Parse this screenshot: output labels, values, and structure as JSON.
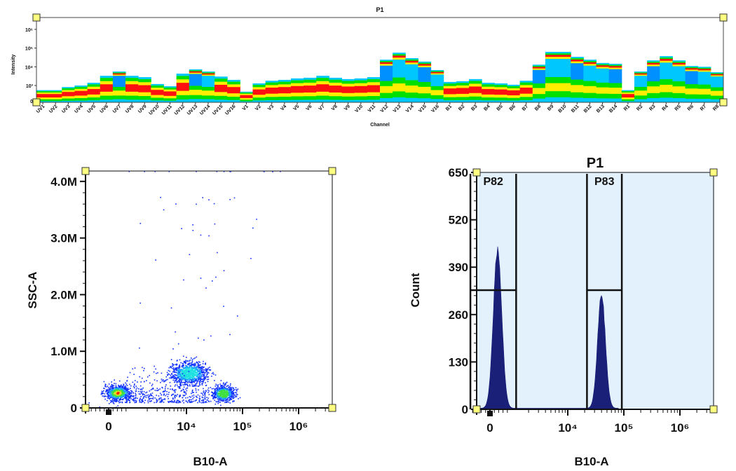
{
  "chart_data": [
    {
      "type": "heatmap",
      "title": "P1",
      "xlabel": "Channel",
      "ylabel": "Intensity",
      "y_scale": "log",
      "y_ticks": [
        "0",
        "10³",
        "10⁴",
        "10⁵",
        "10⁶"
      ],
      "channels": [
        "UV1",
        "UV2",
        "UV3",
        "UV4",
        "UV5",
        "UV6",
        "UV7",
        "UV8",
        "UV9",
        "UV10",
        "UV11",
        "UV12",
        "UV13",
        "UV14",
        "UV15",
        "UV16",
        "V1",
        "V2",
        "V3",
        "V4",
        "V5",
        "V6",
        "V7",
        "V8",
        "V9",
        "V10",
        "V11",
        "V12",
        "V13",
        "V14",
        "V15",
        "V16",
        "B1",
        "B2",
        "B3",
        "B4",
        "B5",
        "B6",
        "B7",
        "B8",
        "B9",
        "B10",
        "B11",
        "B12",
        "B13",
        "B14",
        "R1",
        "R2",
        "R3",
        "R4",
        "R5",
        "R6",
        "R7",
        "R8"
      ],
      "max_intensity": [
        700,
        700,
        900,
        1000,
        1400,
        3300,
        5600,
        3300,
        2800,
        1200,
        950,
        4300,
        7300,
        5600,
        3000,
        2000,
        600,
        1300,
        1800,
        2000,
        2400,
        2600,
        3300,
        2600,
        2200,
        2400,
        2800,
        24000,
        57000,
        29000,
        19000,
        6700,
        1550,
        1700,
        2200,
        1400,
        1300,
        1100,
        1800,
        13000,
        63000,
        63000,
        34000,
        24000,
        16000,
        14500,
        700,
        5600,
        22000,
        37000,
        22000,
        11000,
        10000,
        5100
      ],
      "colors": {
        "low": "#00e000",
        "mid": "#ffee00",
        "high": "#ff1010",
        "bright": "#00c8ff",
        "brightest": "#0090ff"
      }
    },
    {
      "type": "scatter",
      "xlabel": "B10-A",
      "ylabel": "SSC-A",
      "x_scale": "biexponential",
      "x_ticks": [
        "0",
        "10⁴",
        "10⁵",
        "10⁶"
      ],
      "y_ticks": [
        "0",
        "1.0M",
        "2.0M",
        "3.0M",
        "4.0M"
      ],
      "ylim": [
        0,
        4200000
      ],
      "populations": [
        {
          "center_x": 400,
          "center_y": 270000,
          "core_color": "#ff2000"
        },
        {
          "center_x": 11000,
          "center_y": 620000,
          "core_color": "#20c8f0"
        },
        {
          "center_x": 45000,
          "center_y": 260000,
          "core_color": "#30e040"
        }
      ],
      "point_color": "#1030ff"
    },
    {
      "type": "area",
      "title": "P1",
      "xlabel": "B10-A",
      "ylabel": "Count",
      "x_scale": "biexponential",
      "x_ticks": [
        "0",
        "10⁴",
        "10⁵",
        "10⁶"
      ],
      "y_ticks": [
        "0",
        "130",
        "260",
        "390",
        "520",
        "650"
      ],
      "ylim": [
        0,
        650
      ],
      "peaks": [
        {
          "center_x": 350,
          "count": 450
        },
        {
          "center_x": 40000,
          "count": 320
        }
      ],
      "gates": [
        {
          "name": "P82",
          "x_min": -900,
          "x_max": 1200,
          "level": 327
        },
        {
          "name": "P83",
          "x_min": 22000,
          "x_max": 92000,
          "level": 327
        }
      ],
      "fill_color": "#1a1f78",
      "background_color": "#e3f1fc"
    }
  ]
}
